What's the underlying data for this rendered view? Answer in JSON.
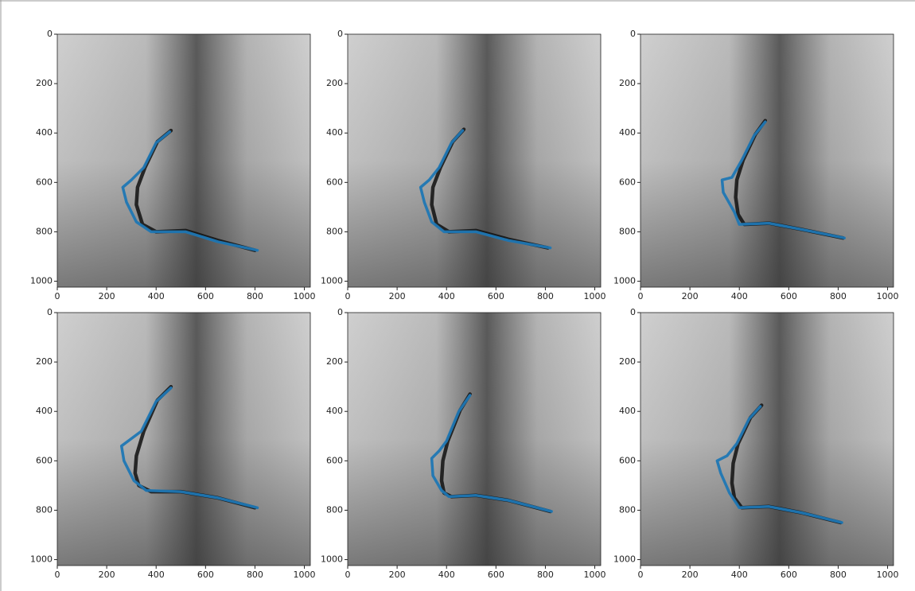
{
  "chart_data": [
    {
      "type": "line",
      "xlim": [
        0,
        1024
      ],
      "ylim": [
        1024,
        0
      ],
      "xticks": [
        0,
        200,
        400,
        600,
        800,
        1000
      ],
      "yticks": [
        0,
        200,
        400,
        600,
        800,
        1000
      ],
      "series": [
        {
          "color": "#111111",
          "x": [
            460,
            405,
            355,
            325,
            320,
            345,
            400,
            520,
            650,
            800
          ],
          "values": [
            390,
            435,
            540,
            620,
            690,
            770,
            800,
            795,
            835,
            875
          ]
        },
        {
          "color": "#1f77b4",
          "x": [
            455,
            400,
            350,
            300,
            265,
            280,
            320,
            380,
            520,
            650,
            810
          ],
          "values": [
            395,
            440,
            540,
            590,
            620,
            680,
            760,
            800,
            800,
            840,
            875
          ]
        }
      ]
    },
    {
      "type": "line",
      "xlim": [
        0,
        1024
      ],
      "ylim": [
        1024,
        0
      ],
      "xticks": [
        0,
        200,
        400,
        600,
        800,
        1000
      ],
      "yticks": [
        0,
        200,
        400,
        600,
        800,
        1000
      ],
      "series": [
        {
          "color": "#111111",
          "x": [
            470,
            425,
            375,
            345,
            340,
            360,
            410,
            520,
            650,
            810
          ],
          "values": [
            385,
            435,
            540,
            620,
            690,
            770,
            800,
            795,
            830,
            865
          ]
        },
        {
          "color": "#1f77b4",
          "x": [
            465,
            420,
            370,
            330,
            295,
            310,
            340,
            390,
            520,
            650,
            820
          ],
          "values": [
            390,
            440,
            540,
            590,
            620,
            680,
            760,
            800,
            800,
            835,
            865
          ]
        }
      ]
    },
    {
      "type": "line",
      "xlim": [
        0,
        1024
      ],
      "ylim": [
        1024,
        0
      ],
      "xticks": [
        0,
        200,
        400,
        600,
        800,
        1000
      ],
      "yticks": [
        0,
        200,
        400,
        600,
        800,
        1000
      ],
      "series": [
        {
          "color": "#111111",
          "x": [
            505,
            465,
            415,
            390,
            385,
            395,
            420,
            520,
            650,
            820
          ],
          "values": [
            350,
            405,
            510,
            590,
            660,
            730,
            770,
            765,
            790,
            825
          ]
        },
        {
          "color": "#1f77b4",
          "x": [
            505,
            460,
            410,
            370,
            330,
            335,
            380,
            400,
            520,
            650,
            825
          ],
          "values": [
            355,
            410,
            510,
            580,
            590,
            640,
            720,
            770,
            765,
            790,
            825
          ]
        }
      ]
    },
    {
      "type": "line",
      "xlim": [
        0,
        1024
      ],
      "ylim": [
        1024,
        0
      ],
      "xticks": [
        0,
        200,
        400,
        600,
        800,
        1000
      ],
      "yticks": [
        0,
        200,
        400,
        600,
        800,
        1000
      ],
      "series": [
        {
          "color": "#111111",
          "x": [
            460,
            405,
            350,
            320,
            315,
            330,
            380,
            500,
            650,
            800
          ],
          "values": [
            300,
            355,
            480,
            580,
            650,
            700,
            725,
            725,
            750,
            790
          ]
        },
        {
          "color": "#1f77b4",
          "x": [
            460,
            400,
            340,
            300,
            260,
            270,
            310,
            360,
            500,
            650,
            810
          ],
          "values": [
            305,
            360,
            480,
            510,
            540,
            600,
            680,
            720,
            725,
            750,
            790
          ]
        }
      ]
    },
    {
      "type": "line",
      "xlim": [
        0,
        1024
      ],
      "ylim": [
        1024,
        0
      ],
      "xticks": [
        0,
        200,
        400,
        600,
        800,
        1000
      ],
      "yticks": [
        0,
        200,
        400,
        600,
        800,
        1000
      ],
      "series": [
        {
          "color": "#111111",
          "x": [
            495,
            455,
            405,
            385,
            380,
            390,
            420,
            520,
            650,
            820
          ],
          "values": [
            330,
            395,
            520,
            600,
            680,
            730,
            745,
            740,
            760,
            805
          ]
        },
        {
          "color": "#1f77b4",
          "x": [
            495,
            450,
            400,
            370,
            340,
            345,
            380,
            410,
            520,
            650,
            825
          ],
          "values": [
            335,
            400,
            520,
            560,
            590,
            660,
            720,
            745,
            740,
            760,
            805
          ]
        }
      ]
    },
    {
      "type": "line",
      "xlim": [
        0,
        1024
      ],
      "ylim": [
        1024,
        0
      ],
      "xticks": [
        0,
        200,
        400,
        600,
        800,
        1000
      ],
      "yticks": [
        0,
        200,
        400,
        600,
        800,
        1000
      ],
      "series": [
        {
          "color": "#111111",
          "x": [
            490,
            445,
            395,
            375,
            370,
            380,
            410,
            520,
            650,
            810
          ],
          "values": [
            375,
            425,
            530,
            610,
            690,
            750,
            790,
            785,
            810,
            850
          ]
        },
        {
          "color": "#1f77b4",
          "x": [
            485,
            440,
            390,
            350,
            310,
            325,
            360,
            400,
            520,
            650,
            815
          ],
          "values": [
            380,
            430,
            530,
            580,
            600,
            650,
            730,
            790,
            785,
            810,
            850
          ]
        }
      ]
    }
  ]
}
